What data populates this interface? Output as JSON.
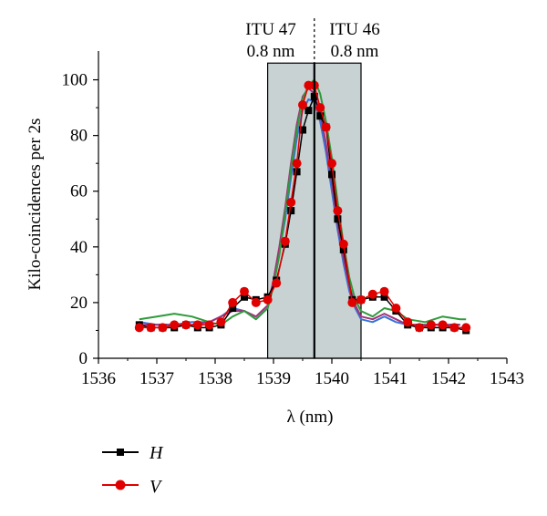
{
  "chart_data": {
    "type": "line",
    "title": "",
    "xlabel": "λ (nm)",
    "ylabel": "Kilo-coincidences per 2s",
    "xlim": [
      1536,
      1543
    ],
    "ylim": [
      0,
      110
    ],
    "x_ticks": [
      1536,
      1537,
      1538,
      1539,
      1540,
      1541,
      1542,
      1543
    ],
    "x_tick_labels": [
      "1536",
      "1537",
      "1538",
      "1539",
      "1540",
      "1541",
      "1542",
      "1543"
    ],
    "y_ticks": [
      0,
      20,
      40,
      60,
      80,
      100
    ],
    "y_tick_labels": [
      "0",
      "20",
      "40",
      "60",
      "80",
      "100"
    ],
    "channels": [
      {
        "label_line1": "ITU 47",
        "label_line2": "0.8 nm",
        "range": [
          1538.9,
          1539.7
        ]
      },
      {
        "label_line1": "ITU 46",
        "label_line2": "0.8 nm",
        "range": [
          1539.7,
          1540.5
        ]
      }
    ],
    "channel_boundary": 1539.7,
    "channel_fill": "#c8d2d2",
    "series": [
      {
        "name": "H",
        "marker": "square",
        "color": "#000000",
        "x": [
          1536.7,
          1536.9,
          1537.1,
          1537.3,
          1537.5,
          1537.7,
          1537.9,
          1538.1,
          1538.3,
          1538.5,
          1538.7,
          1538.9,
          1539.05,
          1539.2,
          1539.3,
          1539.4,
          1539.5,
          1539.6,
          1539.7,
          1539.8,
          1539.9,
          1540.0,
          1540.1,
          1540.2,
          1540.35,
          1540.5,
          1540.7,
          1540.9,
          1541.1,
          1541.3,
          1541.5,
          1541.7,
          1541.9,
          1542.1,
          1542.3
        ],
        "y": [
          12,
          11,
          11,
          11,
          12,
          11,
          11,
          12,
          18,
          22,
          21,
          22,
          28,
          41,
          53,
          67,
          82,
          89,
          94,
          87,
          83,
          66,
          50,
          39,
          21,
          21,
          22,
          22,
          17,
          12,
          11,
          11,
          11,
          11,
          10
        ]
      },
      {
        "name": "V",
        "marker": "circle",
        "color": "#e00000",
        "x": [
          1536.7,
          1536.9,
          1537.1,
          1537.3,
          1537.5,
          1537.7,
          1537.9,
          1538.1,
          1538.3,
          1538.5,
          1538.7,
          1538.9,
          1539.05,
          1539.2,
          1539.3,
          1539.4,
          1539.5,
          1539.6,
          1539.7,
          1539.8,
          1539.9,
          1540.0,
          1540.1,
          1540.2,
          1540.35,
          1540.5,
          1540.7,
          1540.9,
          1541.1,
          1541.3,
          1541.5,
          1541.7,
          1541.9,
          1542.1,
          1542.3
        ],
        "y": [
          11,
          11,
          11,
          12,
          12,
          12,
          12,
          13,
          20,
          24,
          20,
          21,
          27,
          42,
          56,
          70,
          91,
          98,
          98,
          90,
          83,
          70,
          53,
          41,
          20,
          21,
          23,
          24,
          18,
          13,
          11,
          12,
          12,
          11,
          11
        ]
      },
      {
        "name": "",
        "marker": "none",
        "color": "#3a73d6",
        "x": [
          1536.7,
          1537.0,
          1537.3,
          1537.6,
          1537.9,
          1538.1,
          1538.3,
          1538.5,
          1538.7,
          1538.9,
          1539.0,
          1539.1,
          1539.2,
          1539.3,
          1539.4,
          1539.5,
          1539.6,
          1539.7,
          1539.8,
          1539.9,
          1540.0,
          1540.1,
          1540.2,
          1540.3,
          1540.4,
          1540.5,
          1540.7,
          1540.9,
          1541.1,
          1541.3,
          1541.6,
          1541.9,
          1542.2
        ],
        "y": [
          13,
          12,
          12,
          13,
          13,
          15,
          18,
          17,
          14,
          18,
          27,
          38,
          50,
          65,
          79,
          89,
          93,
          92,
          85,
          74,
          60,
          46,
          34,
          24,
          18,
          14,
          13,
          15,
          13,
          12,
          12,
          12,
          12
        ]
      },
      {
        "name": "",
        "marker": "none",
        "color": "#a0327a",
        "x": [
          1536.7,
          1537.0,
          1537.3,
          1537.6,
          1537.9,
          1538.1,
          1538.3,
          1538.5,
          1538.7,
          1538.9,
          1539.0,
          1539.1,
          1539.2,
          1539.3,
          1539.4,
          1539.5,
          1539.6,
          1539.7,
          1539.8,
          1539.9,
          1540.0,
          1540.1,
          1540.2,
          1540.3,
          1540.4,
          1540.5,
          1540.7,
          1540.9,
          1541.1,
          1541.3,
          1541.6,
          1541.9,
          1542.2
        ],
        "y": [
          12,
          12,
          12,
          12,
          13,
          15,
          17,
          17,
          15,
          19,
          28,
          40,
          54,
          70,
          84,
          94,
          97,
          95,
          88,
          77,
          63,
          48,
          36,
          26,
          19,
          15,
          14,
          16,
          14,
          12,
          12,
          12,
          12
        ]
      },
      {
        "name": "",
        "marker": "none",
        "color": "#2e9a3a",
        "x": [
          1536.7,
          1537.0,
          1537.3,
          1537.6,
          1537.9,
          1538.1,
          1538.3,
          1538.5,
          1538.7,
          1538.9,
          1539.0,
          1539.1,
          1539.2,
          1539.3,
          1539.4,
          1539.5,
          1539.6,
          1539.7,
          1539.8,
          1539.9,
          1540.0,
          1540.1,
          1540.2,
          1540.3,
          1540.4,
          1540.5,
          1540.7,
          1540.9,
          1541.1,
          1541.3,
          1541.6,
          1541.9,
          1542.2,
          1542.3
        ],
        "y": [
          14,
          15,
          16,
          15,
          13,
          12,
          15,
          17,
          14,
          18,
          26,
          37,
          52,
          68,
          82,
          93,
          98,
          100,
          95,
          85,
          72,
          56,
          41,
          29,
          21,
          17,
          15,
          18,
          17,
          14,
          13,
          15,
          14,
          14
        ]
      }
    ],
    "legend": {
      "placement": "bottom-left",
      "entries": [
        {
          "label": "H",
          "marker": "square",
          "color": "#000000"
        },
        {
          "label": "V",
          "marker": "circle",
          "color": "#e00000"
        }
      ]
    },
    "grid": false
  }
}
